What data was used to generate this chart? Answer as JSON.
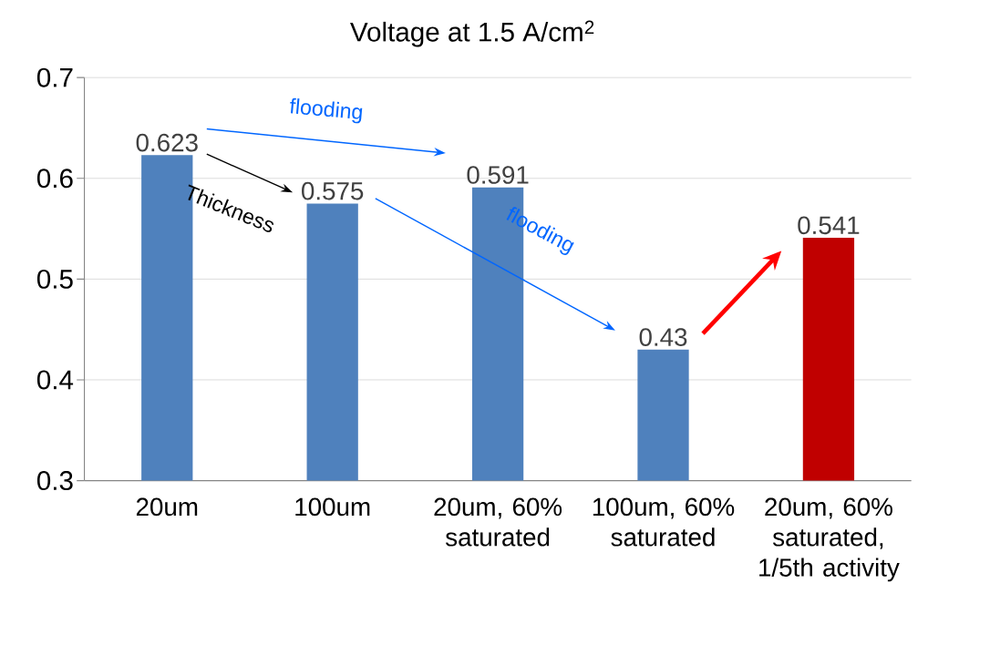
{
  "chart_data": {
    "type": "bar",
    "title": "Voltage at 1.5 A/cm$^{2}$",
    "categories": [
      "20um",
      "100um",
      "20um, 60% saturated",
      "100um, 60% saturated",
      "20um, 60% saturated, 1/5th activity"
    ],
    "values": [
      0.623,
      0.575,
      0.591,
      0.43,
      0.541
    ],
    "colors": [
      "#4f81bd",
      "#4f81bd",
      "#4f81bd",
      "#4f81bd",
      "#c00000"
    ],
    "ylim": [
      0.3,
      0.7
    ],
    "yticks": [
      0.3,
      0.4,
      0.5,
      0.6,
      0.7
    ],
    "grid": "y",
    "data_labels": true,
    "annotations": [
      "flooding",
      "Thickness",
      "flooding"
    ]
  }
}
